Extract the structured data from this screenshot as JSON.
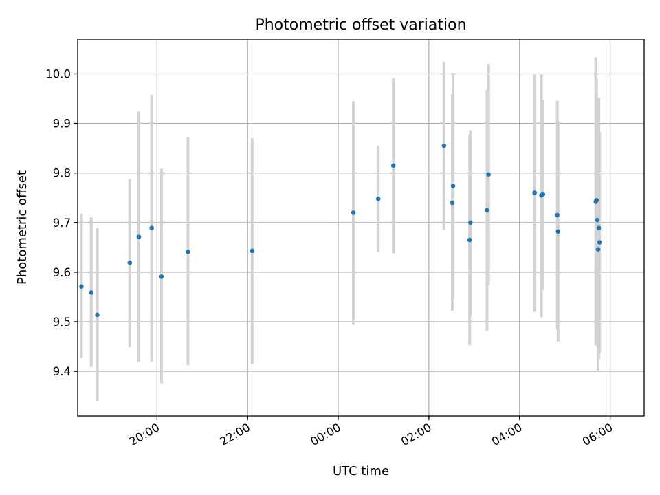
{
  "chart_data": {
    "type": "scatter",
    "title": "Photometric offset variation",
    "xlabel": "UTC time",
    "ylabel": "Photometric offset",
    "grid": true,
    "x_is_time": true,
    "xlim": [
      "18:15",
      "06:45"
    ],
    "ylim": [
      9.31,
      10.07
    ],
    "xticks": [
      "20:00",
      "22:00",
      "00:00",
      "02:00",
      "04:00",
      "06:00"
    ],
    "yticks": [
      9.4,
      9.5,
      9.6,
      9.7,
      9.8,
      9.9,
      10.0
    ],
    "point_color": "#1f77b4",
    "errorbar_color": "#d3d3d3",
    "series": [
      {
        "points": [
          {
            "x": "18:20",
            "y": 9.571,
            "ylo": 9.427,
            "yhi": 9.718
          },
          {
            "x": "18:33",
            "y": 9.559,
            "ylo": 9.409,
            "yhi": 9.711
          },
          {
            "x": "18:41",
            "y": 9.514,
            "ylo": 9.339,
            "yhi": 9.689
          },
          {
            "x": "19:24",
            "y": 9.619,
            "ylo": 9.449,
            "yhi": 9.788
          },
          {
            "x": "19:36",
            "y": 9.671,
            "ylo": 9.419,
            "yhi": 9.924
          },
          {
            "x": "19:53",
            "y": 9.689,
            "ylo": 9.419,
            "yhi": 9.958
          },
          {
            "x": "20:06",
            "y": 9.591,
            "ylo": 9.376,
            "yhi": 9.809
          },
          {
            "x": "20:41",
            "y": 9.641,
            "ylo": 9.412,
            "yhi": 9.872
          },
          {
            "x": "22:06",
            "y": 9.643,
            "ylo": 9.415,
            "yhi": 9.87
          },
          {
            "x": "00:20",
            "y": 9.72,
            "ylo": 9.495,
            "yhi": 9.945
          },
          {
            "x": "00:53",
            "y": 9.748,
            "ylo": 9.64,
            "yhi": 9.855
          },
          {
            "x": "01:13",
            "y": 9.815,
            "ylo": 9.638,
            "yhi": 9.991
          },
          {
            "x": "02:20",
            "y": 9.855,
            "ylo": 9.685,
            "yhi": 10.025
          },
          {
            "x": "02:31",
            "y": 9.74,
            "ylo": 9.522,
            "yhi": 9.96
          },
          {
            "x": "02:32",
            "y": 9.774,
            "ylo": 9.546,
            "yhi": 10.002
          },
          {
            "x": "02:54",
            "y": 9.665,
            "ylo": 9.453,
            "yhi": 9.877
          },
          {
            "x": "02:55",
            "y": 9.7,
            "ylo": 9.513,
            "yhi": 9.886
          },
          {
            "x": "03:17",
            "y": 9.725,
            "ylo": 9.482,
            "yhi": 9.968
          },
          {
            "x": "03:19",
            "y": 9.797,
            "ylo": 9.574,
            "yhi": 10.02
          },
          {
            "x": "04:20",
            "y": 9.76,
            "ylo": 9.52,
            "yhi": 9.999
          },
          {
            "x": "04:29",
            "y": 9.755,
            "ylo": 9.509,
            "yhi": 10.001
          },
          {
            "x": "04:31",
            "y": 9.757,
            "ylo": 9.565,
            "yhi": 9.948
          },
          {
            "x": "04:50",
            "y": 9.715,
            "ylo": 9.485,
            "yhi": 9.946
          },
          {
            "x": "04:51",
            "y": 9.682,
            "ylo": 9.46,
            "yhi": 9.904
          },
          {
            "x": "05:41",
            "y": 9.742,
            "ylo": 9.452,
            "yhi": 10.033
          },
          {
            "x": "05:42",
            "y": 9.745,
            "ylo": 9.5,
            "yhi": 9.99
          },
          {
            "x": "05:43",
            "y": 9.705,
            "ylo": 9.468,
            "yhi": 9.942
          },
          {
            "x": "05:44",
            "y": 9.646,
            "ylo": 9.4,
            "yhi": 9.891
          },
          {
            "x": "05:45",
            "y": 9.689,
            "ylo": 9.425,
            "yhi": 9.952
          },
          {
            "x": "05:46",
            "y": 9.66,
            "ylo": 9.437,
            "yhi": 9.883
          }
        ]
      }
    ]
  }
}
